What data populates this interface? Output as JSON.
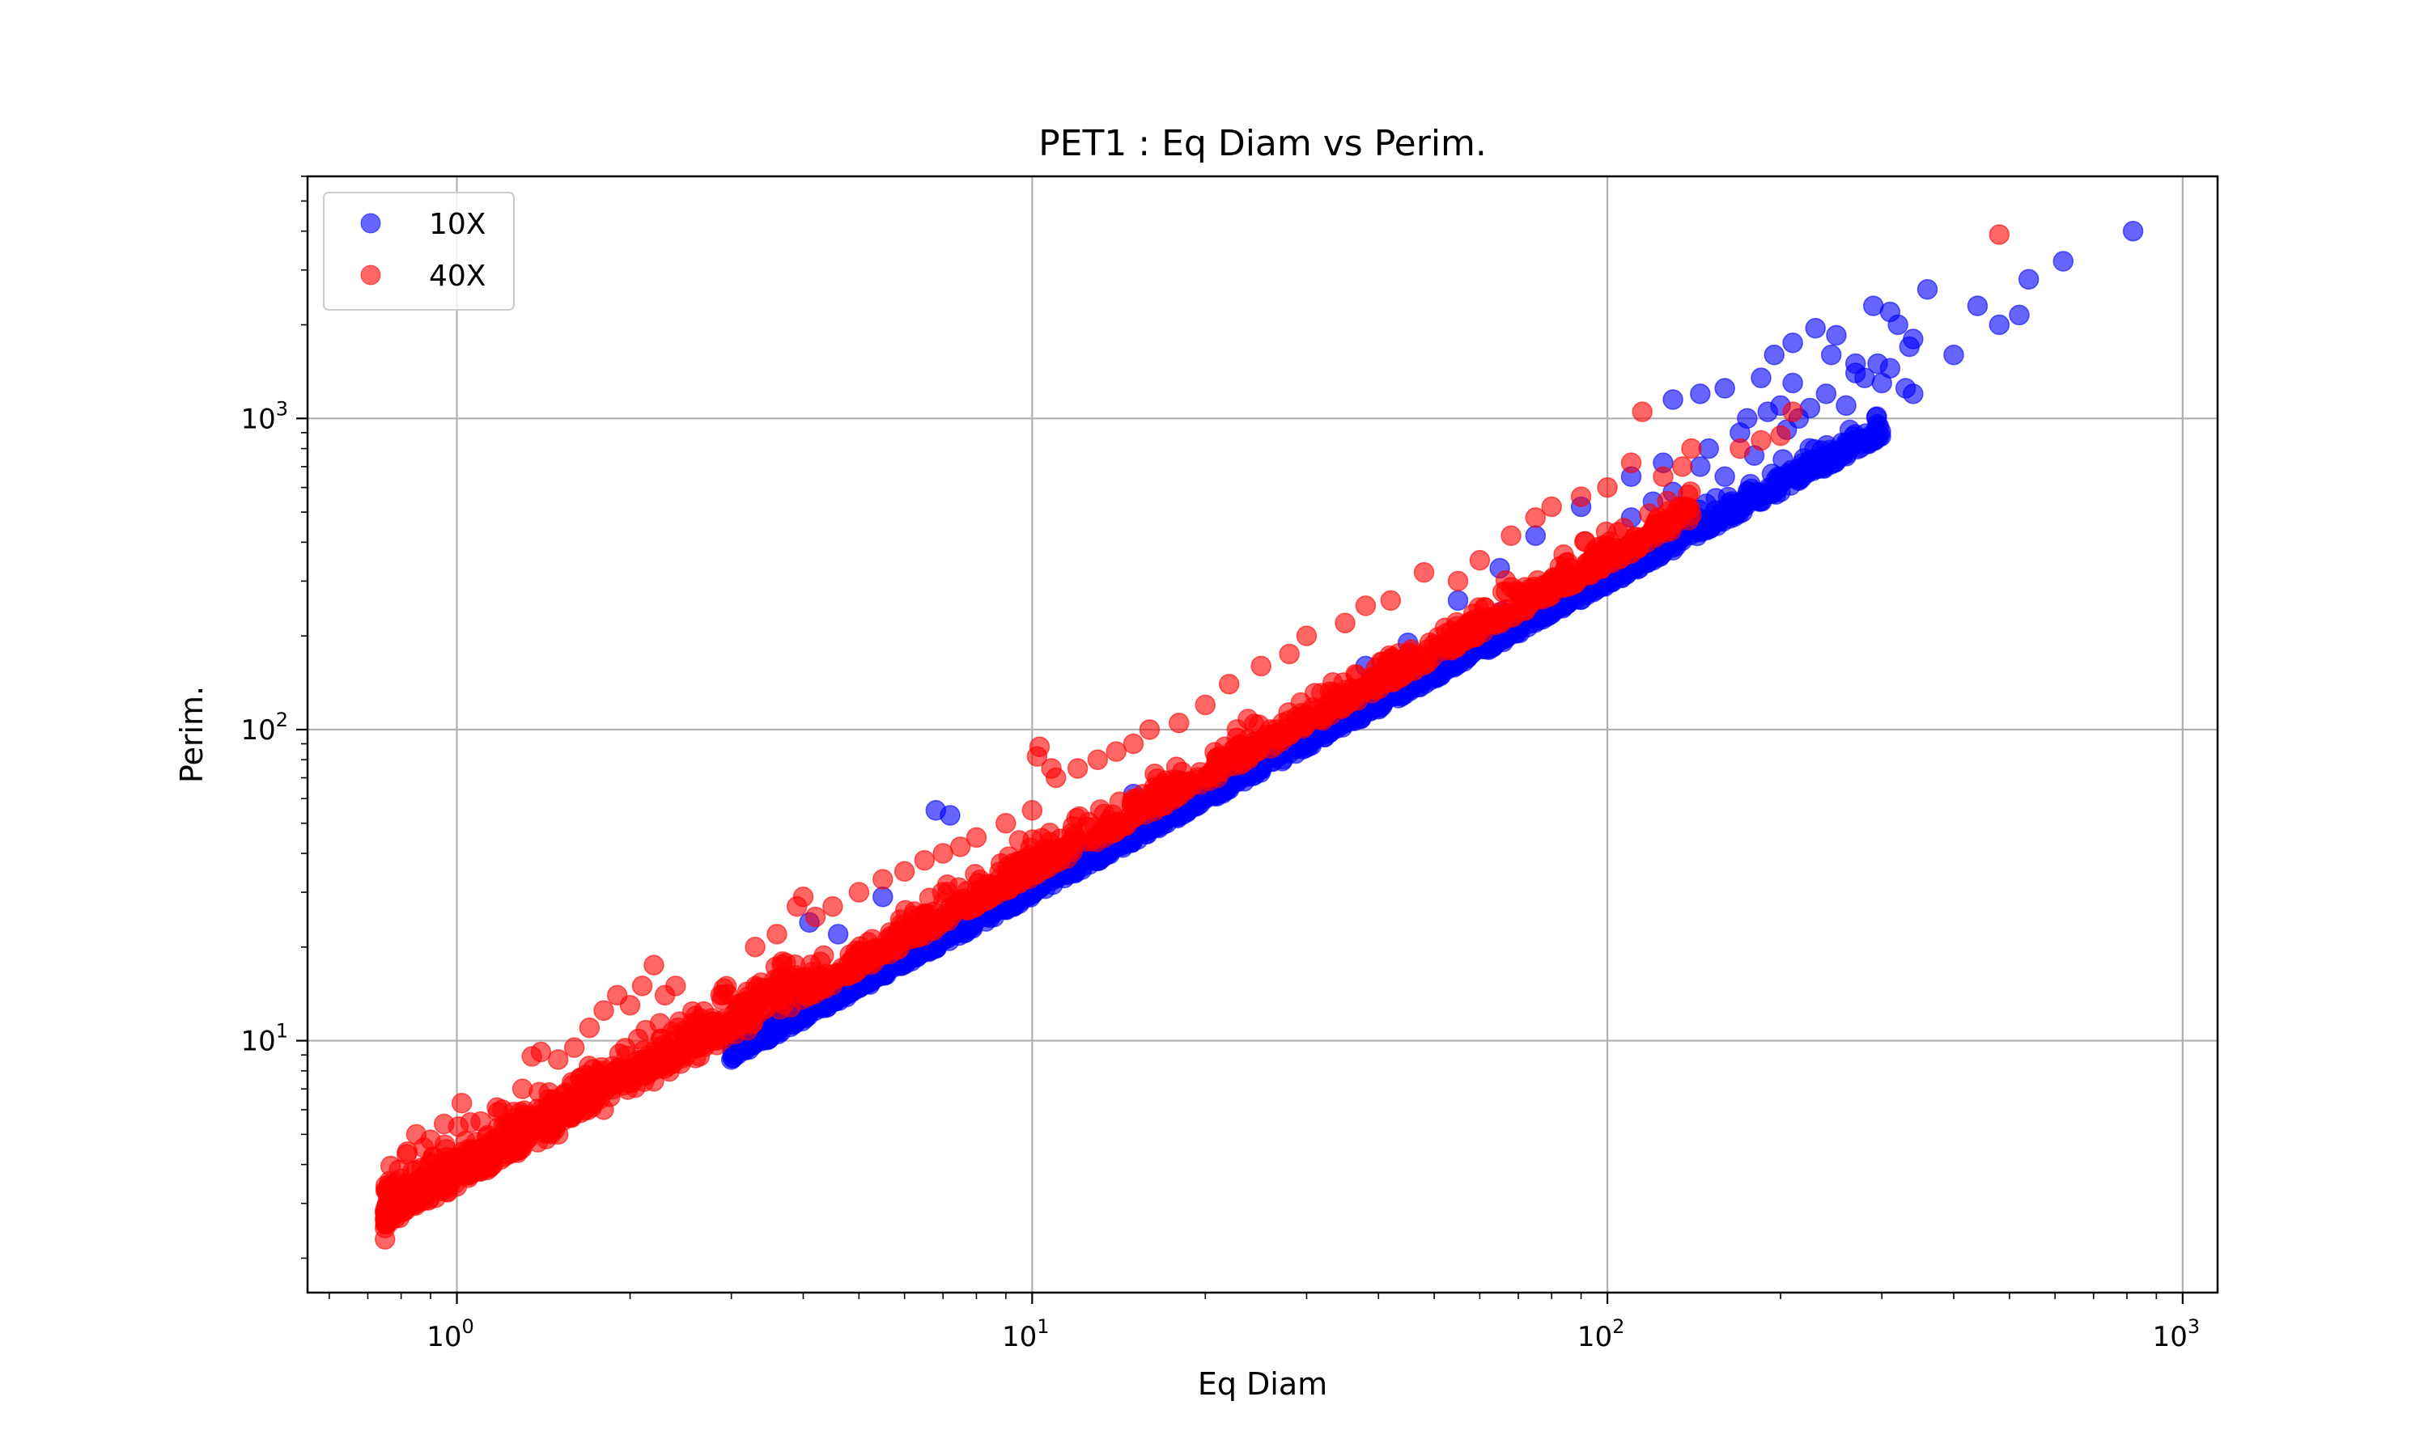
{
  "chart_data": {
    "type": "scatter",
    "title": "PET1 : Eq Diam vs Perim.",
    "xlabel": "Eq Diam",
    "ylabel": "Perim.",
    "xscale": "log",
    "yscale": "log",
    "xlim": [
      0.55,
      1150
    ],
    "ylim": [
      1.55,
      6000
    ],
    "xticks": [
      {
        "base": "10",
        "exp": "0",
        "value": 1
      },
      {
        "base": "10",
        "exp": "1",
        "value": 10
      },
      {
        "base": "10",
        "exp": "2",
        "value": 100
      },
      {
        "base": "10",
        "exp": "3",
        "value": 1000
      }
    ],
    "yticks": [
      {
        "base": "10",
        "exp": "1",
        "value": 10
      },
      {
        "base": "10",
        "exp": "2",
        "value": 100
      },
      {
        "base": "10",
        "exp": "3",
        "value": 1000
      }
    ],
    "grid": true,
    "legend_position": "top-left",
    "series": [
      {
        "name": "10X",
        "color": "#0000ff",
        "opacity": 0.6,
        "trend": {
          "x_range": [
            3.0,
            300
          ],
          "slope": 1.0,
          "intercept_at_1": 2.9
        },
        "points": [
          [
            3.0,
            8.7
          ],
          [
            3.5,
            10.2
          ],
          [
            4.2,
            12.5
          ],
          [
            5.0,
            15
          ],
          [
            6.0,
            18
          ],
          [
            7.0,
            21
          ],
          [
            8.5,
            25.5
          ],
          [
            10,
            30
          ],
          [
            12,
            36
          ],
          [
            14,
            42
          ],
          [
            17,
            51
          ],
          [
            20,
            60
          ],
          [
            24,
            72
          ],
          [
            28,
            84
          ],
          [
            33,
            100
          ],
          [
            40,
            120
          ],
          [
            48,
            145
          ],
          [
            58,
            175
          ],
          [
            70,
            210
          ],
          [
            85,
            255
          ],
          [
            100,
            300
          ],
          [
            120,
            360
          ],
          [
            6.8,
            55
          ],
          [
            7.2,
            53
          ],
          [
            4.1,
            24
          ],
          [
            4.6,
            22
          ],
          [
            5.5,
            29
          ],
          [
            9.5,
            34
          ],
          [
            15,
            62
          ],
          [
            22,
            80
          ],
          [
            30,
            110
          ],
          [
            38,
            160
          ],
          [
            45,
            190
          ],
          [
            55,
            260
          ],
          [
            65,
            330
          ],
          [
            75,
            420
          ],
          [
            90,
            520
          ],
          [
            110,
            650
          ],
          [
            125,
            720
          ],
          [
            130,
            1150
          ],
          [
            145,
            1200
          ],
          [
            160,
            1250
          ],
          [
            175,
            1000
          ],
          [
            185,
            1350
          ],
          [
            195,
            1600
          ],
          [
            210,
            1750
          ],
          [
            230,
            1950
          ],
          [
            250,
            1850
          ],
          [
            270,
            1500
          ],
          [
            290,
            2300
          ],
          [
            310,
            2200
          ],
          [
            320,
            2000
          ],
          [
            340,
            1800
          ],
          [
            360,
            2600
          ],
          [
            400,
            1600
          ],
          [
            440,
            2300
          ],
          [
            480,
            2000
          ],
          [
            520,
            2150
          ],
          [
            540,
            2800
          ],
          [
            620,
            3200
          ],
          [
            820,
            4000
          ],
          [
            150,
            800
          ],
          [
            170,
            900
          ],
          [
            190,
            1050
          ],
          [
            200,
            1100
          ],
          [
            215,
            1000
          ],
          [
            240,
            1200
          ],
          [
            260,
            1100
          ],
          [
            300,
            1300
          ],
          [
            330,
            1250
          ],
          [
            340,
            1200
          ],
          [
            160,
            650
          ],
          [
            145,
            700
          ],
          [
            130,
            580
          ],
          [
            120,
            540
          ],
          [
            110,
            480
          ],
          [
            180,
            760
          ],
          [
            205,
            920
          ],
          [
            225,
            1080
          ],
          [
            280,
            1350
          ],
          [
            310,
            1450
          ],
          [
            335,
            1700
          ],
          [
            210,
            1300
          ],
          [
            245,
            1600
          ],
          [
            270,
            1400
          ],
          [
            295,
            1500
          ]
        ]
      },
      {
        "name": "40X",
        "color": "#ff0000",
        "opacity": 0.6,
        "trend": {
          "x_range": [
            0.75,
            140
          ],
          "slope": 1.0,
          "intercept_at_1": 3.35
        },
        "points": [
          [
            0.75,
            2.3
          ],
          [
            0.75,
            2.5
          ],
          [
            0.75,
            2.8
          ],
          [
            0.76,
            3.2
          ],
          [
            0.8,
            3.6
          ],
          [
            0.82,
            4.4
          ],
          [
            0.85,
            5.0
          ],
          [
            0.9,
            4.8
          ],
          [
            0.95,
            5.4
          ],
          [
            1.02,
            6.3
          ],
          [
            1.1,
            5.5
          ],
          [
            1.2,
            6.0
          ],
          [
            1.3,
            7.0
          ],
          [
            1.35,
            8.9
          ],
          [
            1.4,
            9.2
          ],
          [
            1.5,
            8.7
          ],
          [
            1.6,
            9.5
          ],
          [
            1.7,
            11
          ],
          [
            1.8,
            12.5
          ],
          [
            1.9,
            14
          ],
          [
            2.0,
            13
          ],
          [
            2.1,
            15
          ],
          [
            2.2,
            17.5
          ],
          [
            2.3,
            14
          ],
          [
            2.4,
            15
          ],
          [
            2.6,
            12
          ],
          [
            2.9,
            14
          ],
          [
            3.1,
            13
          ],
          [
            3.3,
            20
          ],
          [
            3.6,
            22
          ],
          [
            3.9,
            27
          ],
          [
            4.0,
            29
          ],
          [
            4.2,
            25
          ],
          [
            4.5,
            27
          ],
          [
            5.0,
            30
          ],
          [
            5.5,
            33
          ],
          [
            6.0,
            35
          ],
          [
            6.5,
            38
          ],
          [
            7.0,
            40
          ],
          [
            7.5,
            42
          ],
          [
            8.0,
            45
          ],
          [
            9.0,
            50
          ],
          [
            10.0,
            55
          ],
          [
            10.2,
            82
          ],
          [
            10.3,
            88
          ],
          [
            10.8,
            75
          ],
          [
            11.0,
            70
          ],
          [
            12.0,
            75
          ],
          [
            13.0,
            80
          ],
          [
            14.0,
            85
          ],
          [
            15.0,
            90
          ],
          [
            16.0,
            100
          ],
          [
            18.0,
            105
          ],
          [
            20.0,
            120
          ],
          [
            22.0,
            140
          ],
          [
            25.0,
            160
          ],
          [
            28.0,
            175
          ],
          [
            30.0,
            200
          ],
          [
            35.0,
            220
          ],
          [
            38.0,
            250
          ],
          [
            42.0,
            260
          ],
          [
            48.0,
            320
          ],
          [
            55.0,
            300
          ],
          [
            60.0,
            350
          ],
          [
            68.0,
            420
          ],
          [
            75.0,
            480
          ],
          [
            80.0,
            520
          ],
          [
            90.0,
            560
          ],
          [
            100.0,
            600
          ],
          [
            110.0,
            720
          ],
          [
            115.0,
            1050
          ],
          [
            125.0,
            650
          ],
          [
            135.0,
            700
          ],
          [
            140.0,
            800
          ],
          [
            170.0,
            800
          ],
          [
            185.0,
            850
          ],
          [
            200.0,
            880
          ],
          [
            210.0,
            1050
          ],
          [
            480.0,
            3900
          ],
          [
            1.0,
            3.4
          ],
          [
            1.1,
            3.8
          ],
          [
            1.3,
            4.6
          ],
          [
            1.5,
            5.0
          ],
          [
            1.8,
            6.0
          ],
          [
            2.2,
            7.4
          ],
          [
            2.6,
            8.8
          ],
          [
            3.2,
            10.8
          ],
          [
            3.8,
            12.8
          ],
          [
            4.5,
            15.1
          ],
          [
            5.3,
            17.8
          ],
          [
            6.5,
            21.8
          ],
          [
            8.0,
            27
          ],
          [
            9.5,
            32
          ],
          [
            11.5,
            38.5
          ],
          [
            14.0,
            47
          ],
          [
            17.0,
            57
          ],
          [
            21.0,
            70
          ],
          [
            26.0,
            87
          ],
          [
            32.0,
            107
          ],
          [
            39.0,
            131
          ],
          [
            48.0,
            161
          ],
          [
            59.0,
            198
          ],
          [
            72.0,
            241
          ],
          [
            88.0,
            295
          ],
          [
            110.0,
            368
          ]
        ]
      }
    ]
  }
}
